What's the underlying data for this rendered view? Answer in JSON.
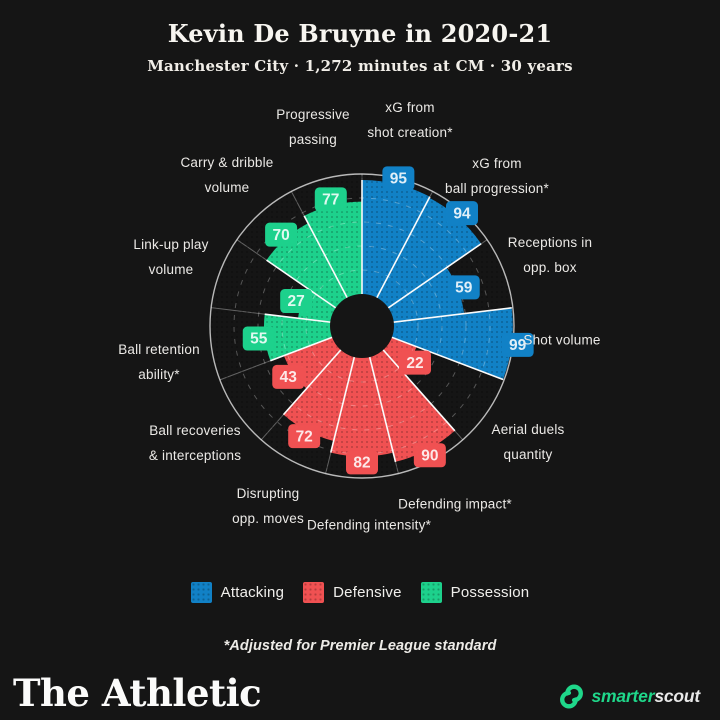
{
  "header": {
    "title": "Kevin De Bruyne in 2020-21",
    "subtitle": "Manchester City · 1,272 minutes at CM · 30 years"
  },
  "chart_data": {
    "type": "bar",
    "variant": "radial-pizza",
    "title": "Kevin De Bruyne in 2020-21",
    "subtitle": "Manchester City · 1,272 minutes at CM · 30 years",
    "scale": [
      0,
      100
    ],
    "grid_rings": [
      20,
      40,
      60,
      80
    ],
    "grid": "dashed-circles",
    "start_angle_deg": 0,
    "direction": "clockwise",
    "groups": {
      "attacking": "#1181c6",
      "defensive": "#f05152",
      "possession": "#1dd18c"
    },
    "categories": [
      {
        "label": [
          "xG from",
          "shot creation*"
        ],
        "value": 95,
        "group": "attacking"
      },
      {
        "label": [
          "xG from",
          "ball progression*"
        ],
        "value": 94,
        "group": "attacking"
      },
      {
        "label": [
          "Receptions in",
          "opp. box"
        ],
        "value": 59,
        "group": "attacking"
      },
      {
        "label": [
          "Shot volume"
        ],
        "value": 99,
        "group": "attacking"
      },
      {
        "label": [
          "Aerial duels",
          "quantity"
        ],
        "value": 22,
        "group": "defensive"
      },
      {
        "label": [
          "Defending impact*"
        ],
        "value": 90,
        "group": "defensive"
      },
      {
        "label": [
          "Defending intensity*"
        ],
        "value": 82,
        "group": "defensive"
      },
      {
        "label": [
          "Disrupting",
          "opp. moves"
        ],
        "value": 72,
        "group": "defensive"
      },
      {
        "label": [
          "Ball recoveries",
          "& interceptions"
        ],
        "value": 43,
        "group": "defensive"
      },
      {
        "label": [
          "Ball retention",
          "ability*"
        ],
        "value": 55,
        "group": "possession"
      },
      {
        "label": [
          "Link-up play",
          "volume"
        ],
        "value": 27,
        "group": "possession"
      },
      {
        "label": [
          "Carry & dribble",
          "volume"
        ],
        "value": 70,
        "group": "possession"
      },
      {
        "label": [
          "Progressive",
          "passing"
        ],
        "value": 77,
        "group": "possession"
      }
    ],
    "legend_position": "bottom"
  },
  "legend": {
    "items": [
      {
        "label": "Attacking",
        "color": "#1181c6"
      },
      {
        "label": "Defensive",
        "color": "#f05152"
      },
      {
        "label": "Possession",
        "color": "#1dd18c"
      }
    ]
  },
  "footnote": "*Adjusted for Premier League standard",
  "branding": {
    "left_wordmark": "The Athletic",
    "right_wordmark_green": "smarter",
    "right_wordmark_white": "scout",
    "right_accent_color": "#1fd78a"
  },
  "colors": {
    "background": "#151515",
    "attacking": "#1181c6",
    "defensive": "#f05152",
    "possession": "#1dd18c",
    "badge_text": "#ffffff"
  }
}
